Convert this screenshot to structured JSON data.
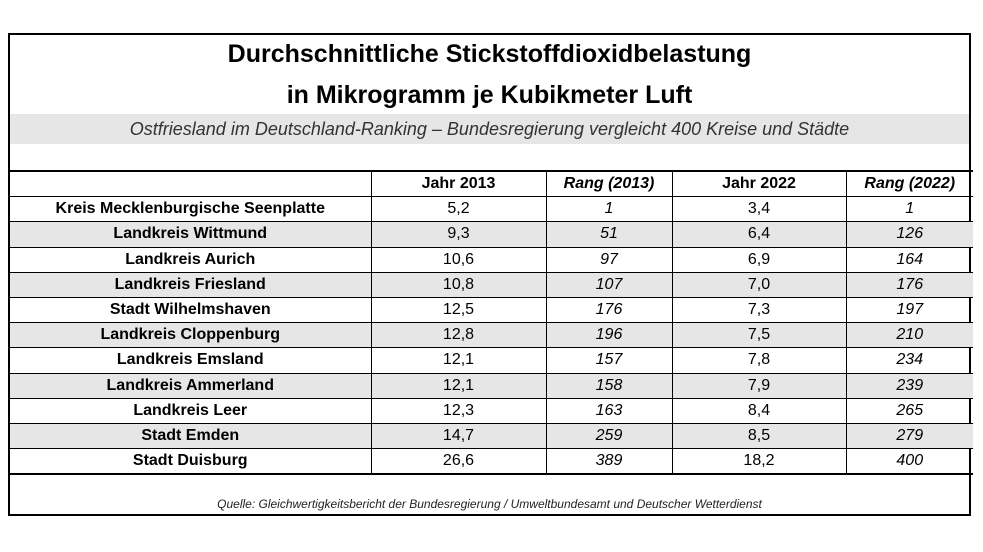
{
  "chart_data": {
    "type": "table",
    "title": "Durchschnittliche Stickstoffdioxidbelastung",
    "title_line2": "in Mikrogramm je Kubikmeter Luft",
    "subtitle": "Ostfriesland im Deutschland-Ranking – Bundesregierung vergleicht 400 Kreise und Städte",
    "columns": [
      "",
      "Jahr 2013",
      "Rang (2013)",
      "Jahr 2022",
      "Rang (2022)"
    ],
    "rows": [
      [
        "Kreis Mecklenburgische Seenplatte",
        "5,2",
        "1",
        "3,4",
        "1"
      ],
      [
        "Landkreis Wittmund",
        "9,3",
        "51",
        "6,4",
        "126"
      ],
      [
        "Landkreis Aurich",
        "10,6",
        "97",
        "6,9",
        "164"
      ],
      [
        "Landkreis Friesland",
        "10,8",
        "107",
        "7,0",
        "176"
      ],
      [
        "Stadt Wilhelmshaven",
        "12,5",
        "176",
        "7,3",
        "197"
      ],
      [
        "Landkreis Cloppenburg",
        "12,8",
        "196",
        "7,5",
        "210"
      ],
      [
        "Landkreis Emsland",
        "12,1",
        "157",
        "7,8",
        "234"
      ],
      [
        "Landkreis Ammerland",
        "12,1",
        "158",
        "7,9",
        "239"
      ],
      [
        "Landkreis Leer",
        "12,3",
        "163",
        "8,4",
        "265"
      ],
      [
        "Stadt Emden",
        "14,7",
        "259",
        "8,5",
        "279"
      ],
      [
        "Stadt Duisburg",
        "26,6",
        "389",
        "18,2",
        "400"
      ]
    ],
    "source": "Quelle: Gleichwertigkeitsbericht der Bundesregierung / Umweltbundesamt und Deutscher Wetterdienst"
  },
  "colors": {
    "stripe": "#e6e6e6",
    "border": "#000000"
  }
}
